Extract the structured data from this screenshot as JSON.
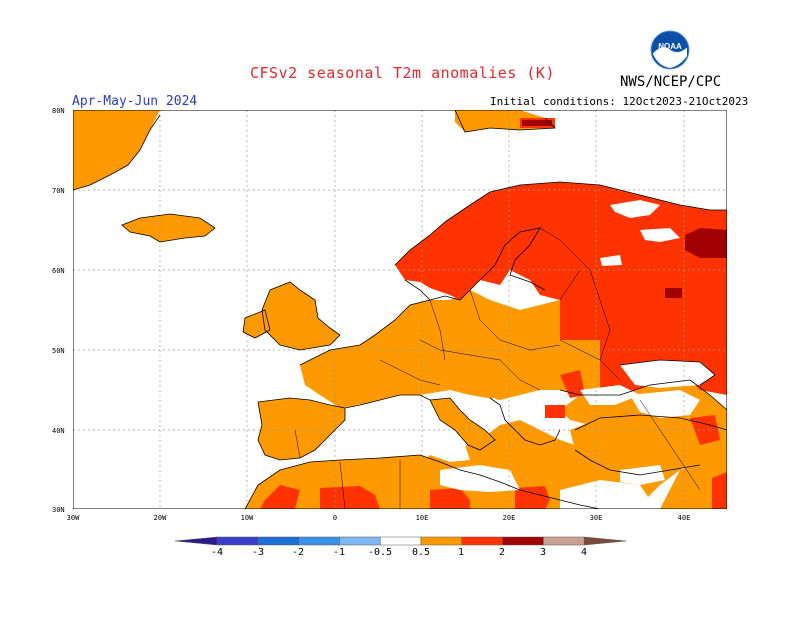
{
  "header": {
    "title": "CFSv2 seasonal T2m anomalies (K)",
    "period": "Apr-May-Jun 2024",
    "initial_conditions": "Initial conditions: 12Oct2023-21Oct2023",
    "agency": "NWS/NCEP/CPC",
    "logo_text": "NOAA"
  },
  "map": {
    "lat_labels": [
      "80N",
      "70N",
      "60N",
      "50N",
      "40N",
      "30N"
    ],
    "lon_labels": [
      "30W",
      "20W",
      "10W",
      "0",
      "10E",
      "20E",
      "30E",
      "40E"
    ]
  },
  "colorbar": {
    "tick_labels": [
      "-4",
      "-3",
      "-2",
      "-1",
      "-0.5",
      "0.5",
      "1",
      "2",
      "3",
      "4"
    ],
    "colors": {
      "below_minus4": "#2a1a8c",
      "minus4_minus3": "#3a3fc8",
      "minus3_minus2": "#1e6fd8",
      "minus2_minus1": "#3b92ea",
      "minus1_minus05": "#7db8f2",
      "neutral": "#ffffff",
      "p05_p1": "#ff9900",
      "p1_p2": "#ff3300",
      "p2_p3": "#a00000",
      "p3_p4": "#c8a091",
      "above_p4": "#7a4a3a"
    }
  },
  "colors": {
    "anomaly_05_1": "#ff9900",
    "anomaly_1_2": "#ff3300",
    "anomaly_2_3": "#a00000"
  }
}
